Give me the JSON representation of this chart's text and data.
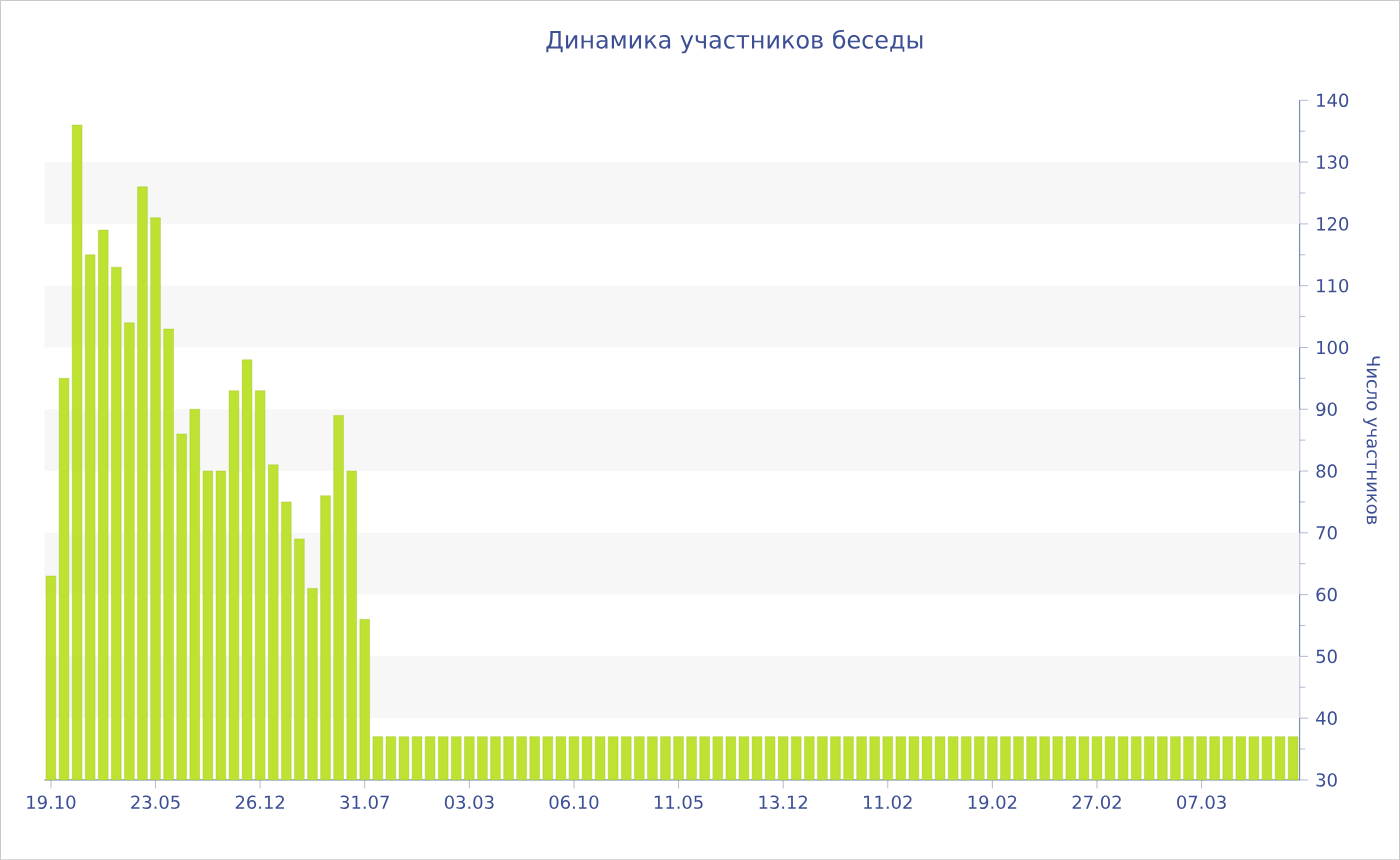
{
  "chart_data": {
    "type": "bar",
    "title": "Динамика участников беседы",
    "ylabel": "Число участников",
    "categories": [
      "19.10",
      null,
      null,
      null,
      null,
      null,
      null,
      null,
      "23.05",
      null,
      null,
      null,
      null,
      null,
      null,
      null,
      "26.12",
      null,
      null,
      null,
      null,
      null,
      null,
      null,
      "31.07",
      null,
      null,
      null,
      null,
      null,
      null,
      null,
      "03.03",
      null,
      null,
      null,
      null,
      null,
      null,
      null,
      "06.10",
      null,
      null,
      null,
      null,
      null,
      null,
      null,
      "11.05",
      null,
      null,
      null,
      null,
      null,
      null,
      null,
      "13.12",
      null,
      null,
      null,
      null,
      null,
      null,
      null,
      "11.02",
      null,
      null,
      null,
      null,
      null,
      null,
      null,
      "19.02",
      null,
      null,
      null,
      null,
      null,
      null,
      null,
      "27.02",
      null,
      null,
      null,
      null,
      null,
      null,
      null,
      "07.03",
      null,
      null,
      null,
      null,
      null,
      null,
      null
    ],
    "values": [
      63,
      95,
      136,
      115,
      119,
      113,
      104,
      126,
      121,
      103,
      86,
      90,
      80,
      80,
      93,
      98,
      93,
      81,
      75,
      69,
      61,
      76,
      89,
      80,
      56,
      37,
      37,
      37,
      37,
      37,
      37,
      37,
      37,
      37,
      37,
      37,
      37,
      37,
      37,
      37,
      37,
      37,
      37,
      37,
      37,
      37,
      37,
      37,
      37,
      37,
      37,
      37,
      37,
      37,
      37,
      37,
      37,
      37,
      37,
      37,
      37,
      37,
      37,
      37,
      37,
      37,
      37,
      37,
      37,
      37,
      37,
      37,
      37,
      37,
      37,
      37,
      37,
      37,
      37,
      37,
      37,
      37,
      37,
      37,
      37,
      37,
      37,
      37,
      37,
      37,
      37,
      37,
      37,
      37,
      37,
      37
    ],
    "color": "#bde232",
    "ylim": [
      30,
      140
    ],
    "yticks": [
      30,
      40,
      50,
      60,
      70,
      80,
      90,
      100,
      110,
      120,
      130,
      140
    ],
    "bands": [
      {
        "axis": "y",
        "from": 40,
        "to": 50,
        "color": "#f7f7f7"
      },
      {
        "axis": "y",
        "from": 60,
        "to": 70,
        "color": "#f7f7f7"
      },
      {
        "axis": "y",
        "from": 80,
        "to": 90,
        "color": "#f7f7f7"
      },
      {
        "axis": "y",
        "from": 100,
        "to": 110,
        "color": "#f7f7f7"
      },
      {
        "axis": "y",
        "from": 120,
        "to": 130,
        "color": "#f7f7f7"
      }
    ]
  }
}
